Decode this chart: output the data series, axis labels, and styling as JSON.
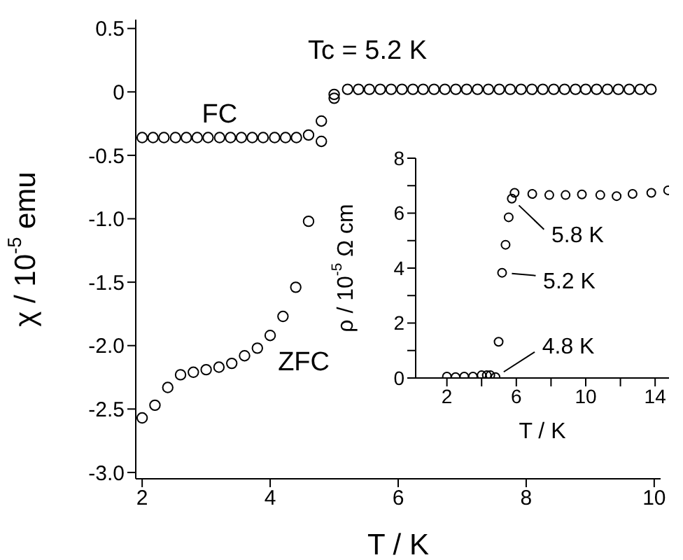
{
  "chart_data": [
    {
      "type": "scatter",
      "xlabel": "T / K",
      "ylabel": "χ / 10$^{-5}$ emu",
      "xlim": [
        1.9,
        10.1
      ],
      "xticks": [
        2,
        4,
        6,
        8,
        10
      ],
      "ylim": [
        -3.05,
        0.57
      ],
      "yticks": [
        0.5,
        0,
        -0.5,
        {
          "value": -1,
          "label": "-1.0"
        },
        -1.5,
        {
          "value": -2,
          "label": "-2.0"
        },
        -2.5,
        {
          "value": -3,
          "label": "-3.0"
        }
      ],
      "marker": "circle",
      "annotations": [
        "Tc = 5.2 K"
      ],
      "series": [
        {
          "name": "FC",
          "color": "#000000",
          "x": [
            2.0,
            2.17,
            2.34,
            2.52,
            2.69,
            2.86,
            3.03,
            3.21,
            3.38,
            3.55,
            3.72,
            3.89,
            4.07,
            4.24,
            4.41,
            4.6,
            4.8,
            5.0,
            5.21,
            5.38,
            5.55,
            5.72,
            5.89,
            6.06,
            6.23,
            6.39,
            6.56,
            6.73,
            6.9,
            7.07,
            7.24,
            7.41,
            7.58,
            7.75,
            7.92,
            8.09,
            8.26,
            8.43,
            8.6,
            8.77,
            8.93,
            9.1,
            9.27,
            9.44,
            9.61,
            9.78,
            9.95
          ],
          "values": [
            -0.36,
            -0.36,
            -0.36,
            -0.36,
            -0.36,
            -0.36,
            -0.36,
            -0.36,
            -0.36,
            -0.36,
            -0.36,
            -0.36,
            -0.36,
            -0.36,
            -0.36,
            -0.34,
            -0.39,
            -0.05,
            0.02,
            0.02,
            0.02,
            0.02,
            0.02,
            0.02,
            0.02,
            0.02,
            0.02,
            0.02,
            0.02,
            0.02,
            0.02,
            0.02,
            0.02,
            0.02,
            0.02,
            0.02,
            0.02,
            0.02,
            0.02,
            0.02,
            0.02,
            0.02,
            0.02,
            0.02,
            0.02,
            0.02,
            0.02
          ]
        },
        {
          "name": "ZFC",
          "color": "#000000",
          "x": [
            2.0,
            2.2,
            2.4,
            2.6,
            2.8,
            3.0,
            3.2,
            3.4,
            3.6,
            3.8,
            4.0,
            4.2,
            4.4,
            4.6,
            4.8,
            5.0
          ],
          "values": [
            -2.57,
            -2.47,
            -2.33,
            -2.23,
            -2.21,
            -2.19,
            -2.17,
            -2.14,
            -2.08,
            -2.02,
            -1.92,
            -1.77,
            -1.54,
            -1.02,
            -0.23,
            -0.02
          ]
        }
      ]
    },
    {
      "type": "scatter",
      "xlabel": "T / K",
      "ylabel": "ρ / 10$^{-5}$ Ω cm",
      "xlim": [
        0.2,
        14.8
      ],
      "xticks": [
        2,
        {
          "value": 4,
          "label": null
        },
        6,
        {
          "value": 8,
          "label": null
        },
        10,
        {
          "value": 12,
          "label": null
        },
        14
      ],
      "ylim": [
        0,
        8
      ],
      "yticks": [
        0,
        {
          "value": 1,
          "label": null
        },
        2,
        {
          "value": 3,
          "label": null
        },
        4,
        {
          "value": 5,
          "label": null
        },
        6,
        {
          "value": 7,
          "label": null
        },
        8
      ],
      "marker": "circle",
      "annotations": [
        {
          "text": "5.8 K",
          "x": 5.74,
          "y": 6.53
        },
        {
          "text": "5.2 K",
          "x": 5.18,
          "y": 3.83
        },
        {
          "text": "4.8 K",
          "x": 4.8,
          "y": 0.03
        }
      ],
      "series": [
        {
          "color": "#000000",
          "x": [
            2.0,
            2.5,
            3.0,
            3.5,
            4.0,
            4.3,
            4.5,
            4.8,
            4.98,
            5.18,
            5.38,
            5.56,
            5.74,
            5.9,
            6.92,
            7.9,
            8.84,
            9.78,
            10.84,
            11.78,
            12.7,
            13.78,
            14.75
          ],
          "values": [
            0.05,
            0.03,
            0.05,
            0.05,
            0.1,
            0.1,
            0.1,
            0.03,
            1.32,
            3.83,
            4.85,
            5.85,
            6.53,
            6.74,
            6.7,
            6.66,
            6.66,
            6.68,
            6.66,
            6.62,
            6.7,
            6.74,
            6.83
          ]
        }
      ]
    }
  ]
}
